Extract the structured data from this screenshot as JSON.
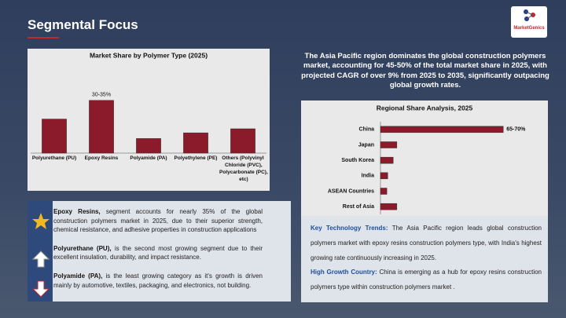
{
  "title": "Segmental Focus",
  "logo": "MarketGenics",
  "summary": "The Asia Pacific region dominates the global construction polymers market, accounting for 45-50% of the total market share in 2025, with projected CAGR of over 9% from 2025 to 2035, significantly outpacing global growth rates.",
  "chart_data": [
    {
      "type": "bar",
      "title": "Market Share by Polymer Type (2025)",
      "categories": [
        "Polyurethane (PU)",
        "Epoxy Resins",
        "Polyamide (PA)",
        "Polyethylene (PE)",
        "Others (Polyvinyl Chloride (PVC), Polycarbonate (PC), etc)"
      ],
      "values": [
        21,
        32.5,
        9,
        12.5,
        15
      ],
      "value_labels": [
        null,
        "30-35%",
        null,
        null,
        null
      ],
      "color": "#8b1a2a",
      "ylim": [
        0,
        45
      ]
    },
    {
      "type": "hbar",
      "title": "Regional Share Analysis, 2025",
      "categories": [
        "China",
        "Japan",
        "South Korea",
        "India",
        "ASEAN Countries",
        "Rest of Asia"
      ],
      "values": [
        67.5,
        9,
        7,
        4,
        3.5,
        9
      ],
      "value_labels": [
        "65-70%",
        null,
        null,
        null,
        null,
        null
      ],
      "color": "#8b1a2a",
      "xlim": [
        0,
        70
      ]
    }
  ],
  "bullets": [
    {
      "lead": "Epoxy Resins,",
      "text": "segment accounts for nearly 35% of the global construction polymers market in 2025, due to their superior strength, chemical resistance, and adhesive properties in construction applications"
    },
    {
      "lead": "Polyurethane (PU),",
      "text": "is the second most growing segment due to their excellent insulation, durability, and impact resistance."
    },
    {
      "lead": "Polyamide (PA),",
      "text": "is the least growing category as it's growth is driven mainly by automotive, textiles, packaging, and electronics, not building."
    }
  ],
  "insights": [
    {
      "lead": "Key Technology Trends:",
      "text": "The Asia Pacific region leads global construction polymers market with epoxy resins construction polymers type, with India's highest growing rate continuously increasing in 2025."
    },
    {
      "lead": "High Growth Country:",
      "text": "China is emerging as a hub for epoxy resins construction polymers type within construction polymers market ."
    }
  ]
}
